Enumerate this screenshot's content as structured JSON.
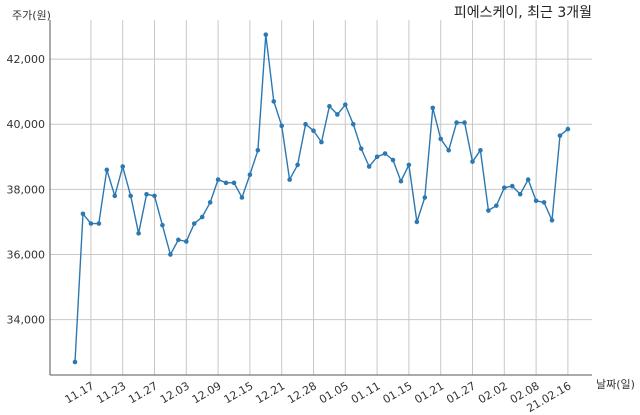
{
  "chart_data": {
    "type": "line",
    "title": "피에스케이, 최근 3개월",
    "ylabel": "주가(원)",
    "xlabel": "날짜(일)",
    "ylim": [
      32300,
      43200
    ],
    "yticks": [
      34000,
      36000,
      38000,
      40000,
      42000
    ],
    "ytick_labels": [
      "34,000",
      "36,000",
      "38,000",
      "40,000",
      "42,000"
    ],
    "x_tick_labels": [
      "11.17",
      "11.23",
      "11.27",
      "12.03",
      "12.09",
      "12.15",
      "12.21",
      "12.28",
      "01.05",
      "01.11",
      "01.15",
      "01.21",
      "01.27",
      "02.02",
      "02.08",
      "21.02.16"
    ],
    "x_tick_index": [
      2,
      6,
      10,
      14,
      18,
      22,
      26,
      30,
      34,
      38,
      42,
      46,
      50,
      54,
      58,
      62
    ],
    "grid": true,
    "series": [
      {
        "color": "#2b78b2",
        "values": [
          32700,
          37250,
          36950,
          36950,
          38600,
          37800,
          38700,
          37800,
          36650,
          37850,
          37800,
          36900,
          36000,
          36450,
          36400,
          36950,
          37150,
          37600,
          38300,
          38200,
          38200,
          37750,
          38450,
          39200,
          42750,
          40700,
          39950,
          38300,
          38750,
          40000,
          39800,
          39450,
          40550,
          40300,
          40600,
          40000,
          39250,
          38700,
          39000,
          39100,
          38900,
          38250,
          38750,
          37000,
          37750,
          40500,
          39550,
          39200,
          40050,
          40050,
          38850,
          39200,
          37350,
          37500,
          38050,
          38100,
          37850,
          38300,
          37650,
          37600,
          37050,
          39650,
          39850
        ]
      }
    ]
  }
}
